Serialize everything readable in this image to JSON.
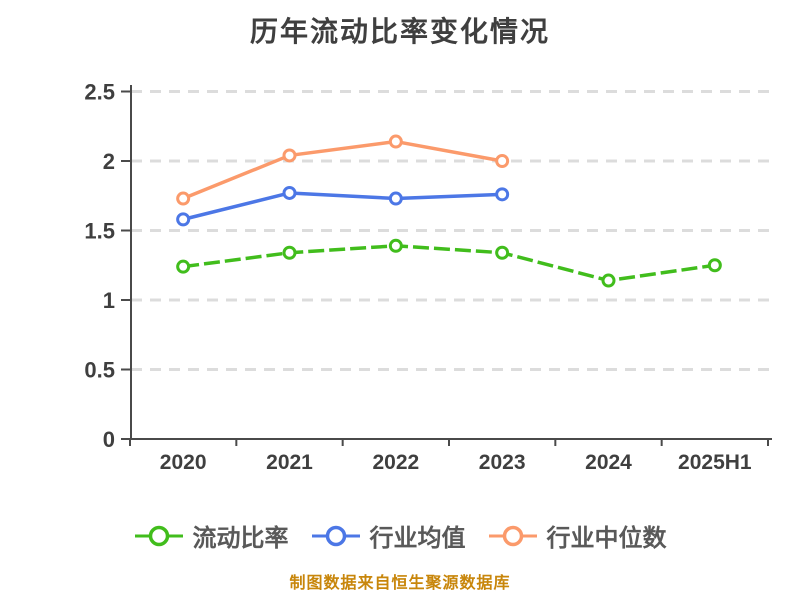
{
  "title": "历年流动比率变化情况",
  "footer": "制图数据来自恒生聚源数据库",
  "colors": {
    "background": "#ffffff",
    "title": "#3f3f3f",
    "axis": "#4a4a4a",
    "grid": "#dcdcdc",
    "tick_label": "#3f3f3f",
    "legend_label": "#595959",
    "footer": "#c8860b",
    "marker_fill": "#ffffff"
  },
  "chart_data": {
    "type": "line",
    "title": "历年流动比率变化情况",
    "categories": [
      "2020",
      "2021",
      "2022",
      "2023",
      "2024",
      "2025H1"
    ],
    "series": [
      {
        "name": "流动比率",
        "color": "#41bd1c",
        "style": "dashed",
        "marker": "circle-white-fill",
        "values": [
          1.24,
          1.34,
          1.39,
          1.34,
          1.14,
          1.25
        ]
      },
      {
        "name": "行业均值",
        "color": "#4c77e6",
        "style": "solid",
        "marker": "circle-white-fill",
        "values": [
          1.58,
          1.77,
          1.73,
          1.76
        ]
      },
      {
        "name": "行业中位数",
        "color": "#fb9a6b",
        "style": "solid",
        "marker": "circle-white-fill",
        "values": [
          1.73,
          2.04,
          2.14,
          2.0
        ]
      }
    ],
    "xlabel": "",
    "ylabel": "",
    "ylim": [
      0,
      2.5
    ],
    "ytick_step": 0.5,
    "ytick_labels": [
      "0",
      "0.5",
      "1",
      "1.5",
      "2",
      "2.5"
    ],
    "grid": "horizontal-dashed",
    "legend_position": "bottom",
    "source_note": "制图数据来自恒生聚源数据库"
  }
}
